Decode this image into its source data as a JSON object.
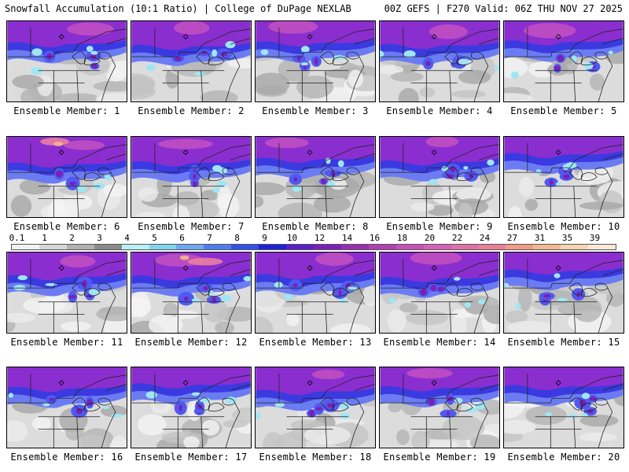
{
  "header": {
    "left_title": "Snowfall Accumulation (10:1 Ratio) | College of DuPage NEXLAB",
    "right_title": "00Z GEFS | F270 Valid: 06Z THU NOV 27 2025"
  },
  "colorbar": {
    "labels": [
      "0.1",
      "1",
      "2",
      "3",
      "4",
      "5",
      "6",
      "7",
      "8",
      "9",
      "10",
      "12",
      "14",
      "16",
      "18",
      "20",
      "22",
      "24",
      "27",
      "31",
      "35",
      "39"
    ],
    "colors": [
      "#f2f2f2",
      "#d6d6d6",
      "#b0b0b0",
      "#8a8a8a",
      "#b8f0f8",
      "#7fd6ec",
      "#6fa8f2",
      "#4f7df0",
      "#2f52e8",
      "#2020d8",
      "#5a20c8",
      "#7a20b8",
      "#9630b0",
      "#b040b0",
      "#c850b8",
      "#d860b8",
      "#e070a8",
      "#e88098",
      "#f09a88",
      "#f4b890",
      "#f8d4b0",
      "#fde8d4"
    ]
  },
  "panels": [
    {
      "label": "Ensemble Member: 1",
      "intensity": 3
    },
    {
      "label": "Ensemble Member: 2",
      "intensity": 3
    },
    {
      "label": "Ensemble Member: 3",
      "intensity": 3
    },
    {
      "label": "Ensemble Member: 4",
      "intensity": 3
    },
    {
      "label": "Ensemble Member: 5",
      "intensity": 3
    },
    {
      "label": "Ensemble Member: 6",
      "intensity": 4
    },
    {
      "label": "Ensemble Member: 7",
      "intensity": 3
    },
    {
      "label": "Ensemble Member: 8",
      "intensity": 3
    },
    {
      "label": "Ensemble Member: 9",
      "intensity": 3
    },
    {
      "label": "Ensemble Member: 10",
      "intensity": 2
    },
    {
      "label": "Ensemble Member: 11",
      "intensity": 3
    },
    {
      "label": "Ensemble Member: 12",
      "intensity": 4
    },
    {
      "label": "Ensemble Member: 13",
      "intensity": 3
    },
    {
      "label": "Ensemble Member: 14",
      "intensity": 3
    },
    {
      "label": "Ensemble Member: 15",
      "intensity": 2
    },
    {
      "label": "Ensemble Member: 16",
      "intensity": 2
    },
    {
      "label": "Ensemble Member: 17",
      "intensity": 2
    },
    {
      "label": "Ensemble Member: 18",
      "intensity": 3
    },
    {
      "label": "Ensemble Member: 19",
      "intensity": 3
    },
    {
      "label": "Ensemble Member: 20",
      "intensity": 2
    }
  ]
}
